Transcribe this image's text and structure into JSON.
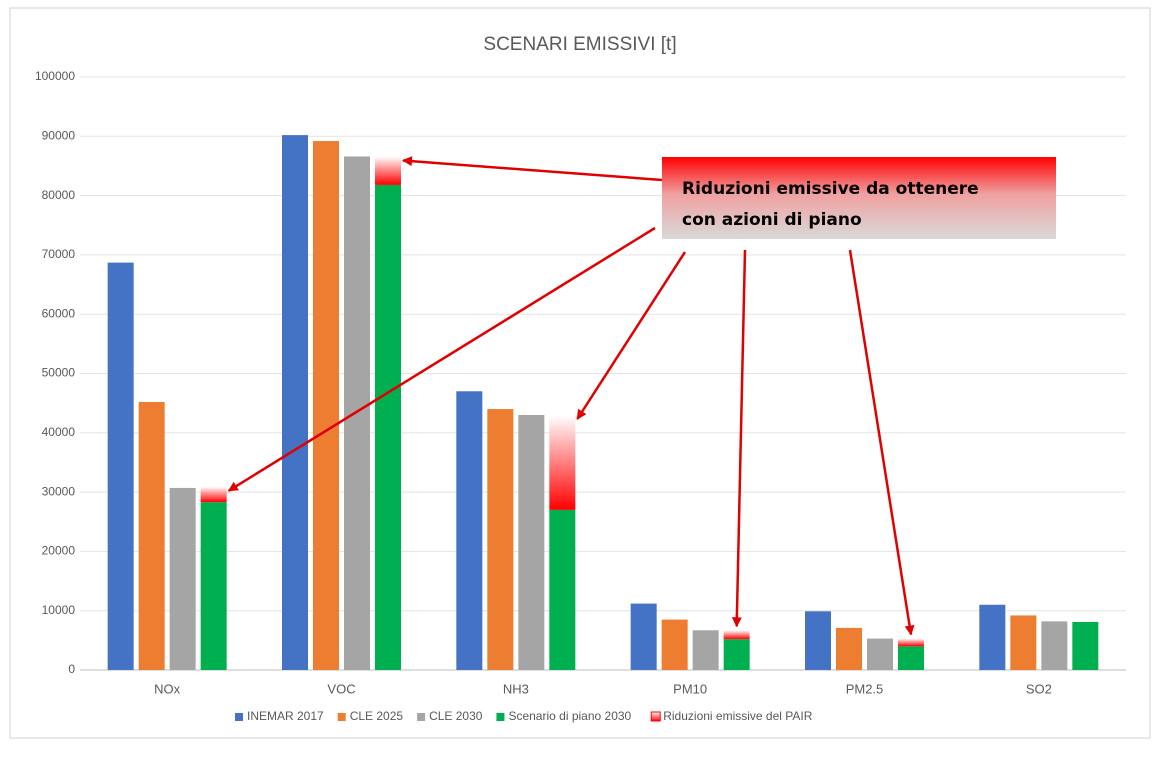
{
  "chart_data": {
    "type": "bar",
    "title": "SCENARI EMISSIVI [t]",
    "categories": [
      "NOx",
      "VOC",
      "NH3",
      "PM10",
      "PM2.5",
      "SO2"
    ],
    "series": [
      {
        "name": "INEMAR 2017",
        "color": "#4472c4",
        "values": [
          68700,
          90200,
          47000,
          11200,
          9900,
          11000
        ]
      },
      {
        "name": "CLE 2025",
        "color": "#ed7d31",
        "values": [
          45200,
          89200,
          44000,
          8500,
          7100,
          9200
        ]
      },
      {
        "name": "CLE 2030",
        "color": "#a5a5a5",
        "values": [
          30700,
          86600,
          43000,
          6700,
          5300,
          8200
        ]
      },
      {
        "name": "Scenario di piano 2030",
        "color": "#00b050",
        "values": [
          28300,
          81800,
          27000,
          5200,
          4000,
          8100
        ]
      },
      {
        "name": "Riduzioni emissive del PAIR",
        "color": "#ff0000",
        "stacked_on": "Scenario di piano 2030",
        "values": [
          2600,
          4800,
          16000,
          1500,
          1300,
          0
        ]
      }
    ],
    "ylim": [
      0,
      100000
    ],
    "yticks": [
      0,
      10000,
      20000,
      30000,
      40000,
      50000,
      60000,
      70000,
      80000,
      90000,
      100000
    ],
    "grid": true,
    "legend": "bottom",
    "annotation": {
      "lines": [
        "Riduzioni emissive da ottenere",
        "con azioni di piano"
      ]
    }
  }
}
